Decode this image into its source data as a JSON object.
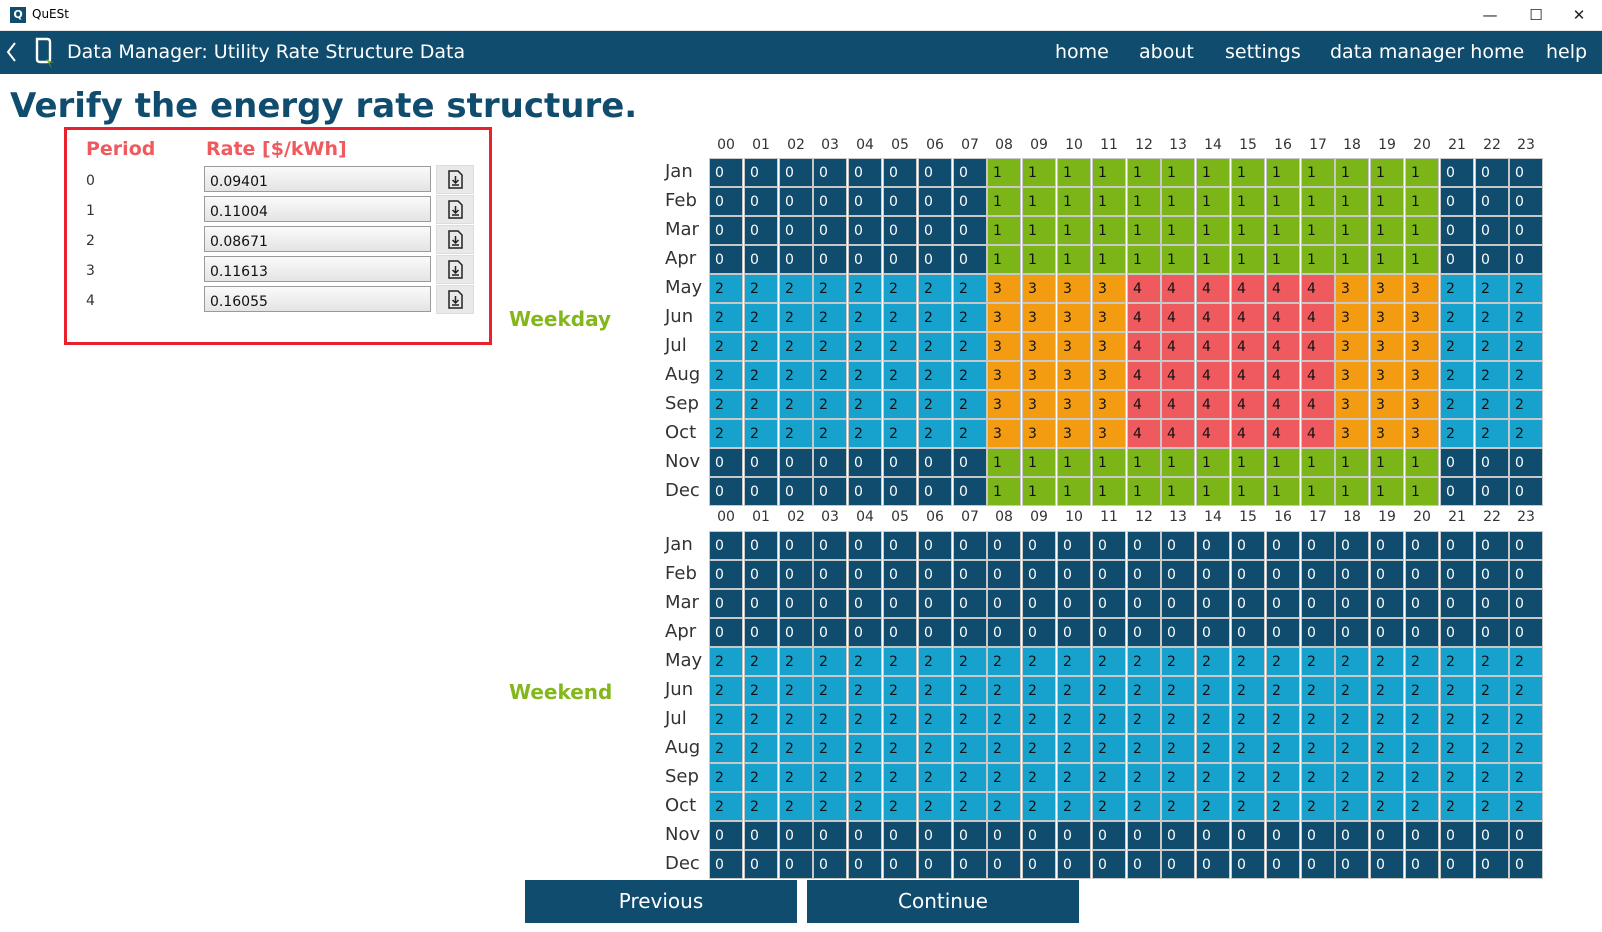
{
  "window": {
    "app_icon_letter": "Q",
    "title": "QuESt",
    "minimize": "—",
    "maximize": "☐",
    "close": "✕"
  },
  "navbar": {
    "back": "‹",
    "title": "Data Manager: Utility Rate Structure Data",
    "links": [
      "home",
      "about",
      "settings",
      "data manager home",
      "help"
    ]
  },
  "page_title": "Verify the energy rate structure.",
  "rate_table": {
    "period_header": "Period",
    "rate_header": "Rate [$/kWh]",
    "rows": [
      {
        "period": "0",
        "rate": "0.09401"
      },
      {
        "period": "1",
        "rate": "0.11004"
      },
      {
        "period": "2",
        "rate": "0.08671"
      },
      {
        "period": "3",
        "rate": "0.11613"
      },
      {
        "period": "4",
        "rate": "0.16055"
      }
    ]
  },
  "hours": [
    "00",
    "01",
    "02",
    "03",
    "04",
    "05",
    "06",
    "07",
    "08",
    "09",
    "10",
    "11",
    "12",
    "13",
    "14",
    "15",
    "16",
    "17",
    "18",
    "19",
    "20",
    "21",
    "22",
    "23"
  ],
  "months": [
    "Jan",
    "Feb",
    "Mar",
    "Apr",
    "May",
    "Jun",
    "Jul",
    "Aug",
    "Sep",
    "Oct",
    "Nov",
    "Dec"
  ],
  "weekday": {
    "label": "Weekday",
    "grid": [
      "000000001111111111111000",
      "000000001111111111111000",
      "000000001111111111111000",
      "000000001111111111111000",
      "222222223333444444333222",
      "222222223333444444333222",
      "222222223333444444333222",
      "222222223333444444333222",
      "222222223333444444333222",
      "222222223333444444333222",
      "000000001111111111111000",
      "000000001111111111111000"
    ]
  },
  "weekend": {
    "label": "Weekend",
    "grid": [
      "000000000000000000000000",
      "000000000000000000000000",
      "000000000000000000000000",
      "000000000000000000000000",
      "222222222222222222222222",
      "222222222222222222222222",
      "222222222222222222222222",
      "222222222222222222222222",
      "222222222222222222222222",
      "222222222222222222222222",
      "000000000000000000000000",
      "000000000000000000000000"
    ]
  },
  "colors": {
    "nav": "#0f4c6e",
    "period_0": "#0f4c6e",
    "period_1": "#7cb518",
    "period_2": "#16a2cd",
    "period_3": "#f39c12",
    "period_4": "#ef5a5f",
    "highlight_box": "#e8212c"
  },
  "icons": {
    "back": "chevron-left-icon",
    "logo": "quest-logo-icon",
    "save": "file-download-icon"
  },
  "buttons": {
    "previous": "Previous",
    "continue": "Continue"
  }
}
